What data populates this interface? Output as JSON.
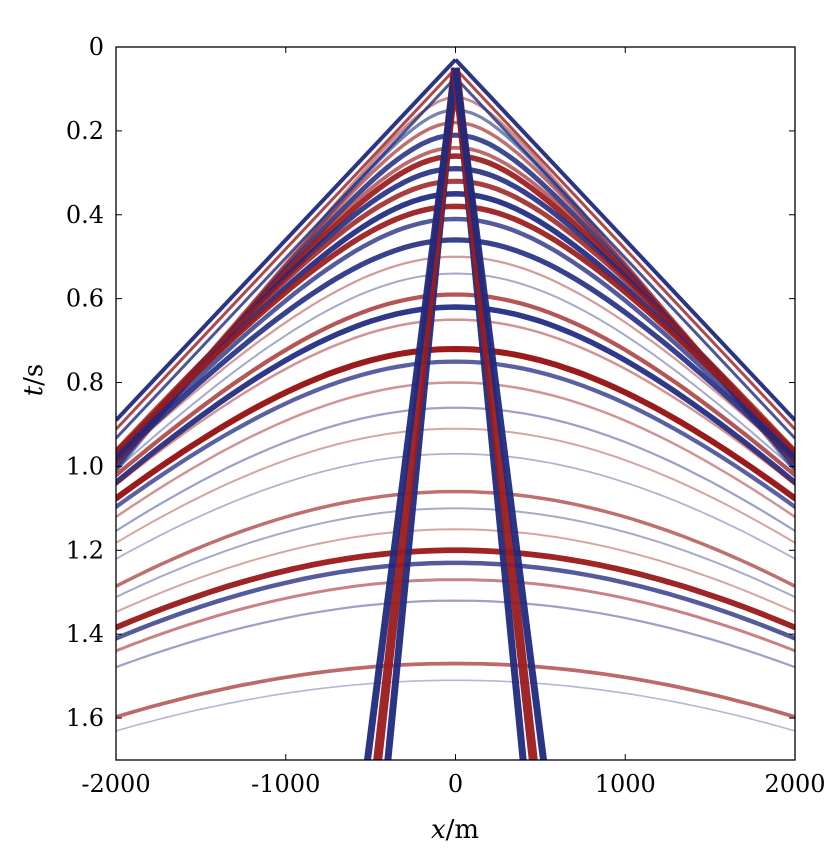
{
  "chart_data": {
    "type": "seismic-gather",
    "title": "",
    "xlabel": {
      "italic": "x",
      "unit": "/m"
    },
    "ylabel": {
      "italic": "t",
      "unit": "/s"
    },
    "xlim": [
      -2000,
      2000
    ],
    "ylim": [
      1.7,
      0
    ],
    "x_ticks": [
      {
        "value": -2000,
        "label": "-2000"
      },
      {
        "value": -1000,
        "label": "-1000"
      },
      {
        "value": 0,
        "label": "0"
      },
      {
        "value": 1000,
        "label": "1000"
      },
      {
        "value": 2000,
        "label": "2000"
      }
    ],
    "y_ticks": [
      {
        "value": 0,
        "label": "0"
      },
      {
        "value": 0.2,
        "label": "0.2"
      },
      {
        "value": 0.4,
        "label": "0.4"
      },
      {
        "value": 0.6,
        "label": "0.6"
      },
      {
        "value": 0.8,
        "label": "0.8"
      },
      {
        "value": 1.0,
        "label": "1.0"
      },
      {
        "value": 1.2,
        "label": "1.2"
      },
      {
        "value": 1.4,
        "label": "1.4"
      },
      {
        "value": 1.6,
        "label": "1.6"
      }
    ],
    "colors": {
      "positive": "#9b1b1b",
      "negative": "#1f2a80"
    },
    "direct_wave": {
      "apex_t": 0.03,
      "slowness_s_per_m": 0.00043
    },
    "ground_roll": {
      "apex_t": 0.05,
      "slowness_s_per_m": 0.0036,
      "offsets_m": [
        -30,
        0,
        30
      ]
    },
    "reflections": [
      {
        "t0": 0.12,
        "v": 2000,
        "pol": 1,
        "amp": 0.35
      },
      {
        "t0": 0.15,
        "v": 2000,
        "pol": -1,
        "amp": 0.45
      },
      {
        "t0": 0.18,
        "v": 2050,
        "pol": 1,
        "amp": 0.5
      },
      {
        "t0": 0.21,
        "v": 2050,
        "pol": -1,
        "amp": 0.8
      },
      {
        "t0": 0.24,
        "v": 2100,
        "pol": 1,
        "amp": 0.55
      },
      {
        "t0": 0.26,
        "v": 2100,
        "pol": 1,
        "amp": 0.9
      },
      {
        "t0": 0.29,
        "v": 2150,
        "pol": -1,
        "amp": 0.85
      },
      {
        "t0": 0.32,
        "v": 2200,
        "pol": 1,
        "amp": 0.8
      },
      {
        "t0": 0.35,
        "v": 2200,
        "pol": -1,
        "amp": 0.9
      },
      {
        "t0": 0.38,
        "v": 2250,
        "pol": 1,
        "amp": 0.9
      },
      {
        "t0": 0.41,
        "v": 2250,
        "pol": -1,
        "amp": 0.7
      },
      {
        "t0": 0.46,
        "v": 2300,
        "pol": -1,
        "amp": 0.85
      },
      {
        "t0": 0.5,
        "v": 2350,
        "pol": 1,
        "amp": 0.25
      },
      {
        "t0": 0.54,
        "v": 2350,
        "pol": -1,
        "amp": 0.2
      },
      {
        "t0": 0.59,
        "v": 2400,
        "pol": 1,
        "amp": 0.65
      },
      {
        "t0": 0.62,
        "v": 2400,
        "pol": -1,
        "amp": 0.9
      },
      {
        "t0": 0.65,
        "v": 2450,
        "pol": 1,
        "amp": 0.3
      },
      {
        "t0": 0.72,
        "v": 2500,
        "pol": 1,
        "amp": 1.0
      },
      {
        "t0": 0.75,
        "v": 2500,
        "pol": -1,
        "amp": 0.65
      },
      {
        "t0": 0.8,
        "v": 2550,
        "pol": 1,
        "amp": 0.3
      },
      {
        "t0": 0.86,
        "v": 2600,
        "pol": -1,
        "amp": 0.25
      },
      {
        "t0": 0.91,
        "v": 2650,
        "pol": 1,
        "amp": 0.2
      },
      {
        "t0": 0.97,
        "v": 2700,
        "pol": -1,
        "amp": 0.15
      },
      {
        "t0": 1.06,
        "v": 2750,
        "pol": 1,
        "amp": 0.5
      },
      {
        "t0": 1.1,
        "v": 2800,
        "pol": -1,
        "amp": 0.2
      },
      {
        "t0": 1.15,
        "v": 2850,
        "pol": 1,
        "amp": 0.2
      },
      {
        "t0": 1.2,
        "v": 2900,
        "pol": 1,
        "amp": 0.95
      },
      {
        "t0": 1.23,
        "v": 2900,
        "pol": -1,
        "amp": 0.7
      },
      {
        "t0": 1.27,
        "v": 2950,
        "pol": 1,
        "amp": 0.4
      },
      {
        "t0": 1.32,
        "v": 3000,
        "pol": -1,
        "amp": 0.25
      },
      {
        "t0": 1.47,
        "v": 3200,
        "pol": 1,
        "amp": 0.55
      },
      {
        "t0": 1.51,
        "v": 3250,
        "pol": -1,
        "amp": 0.12
      }
    ]
  }
}
